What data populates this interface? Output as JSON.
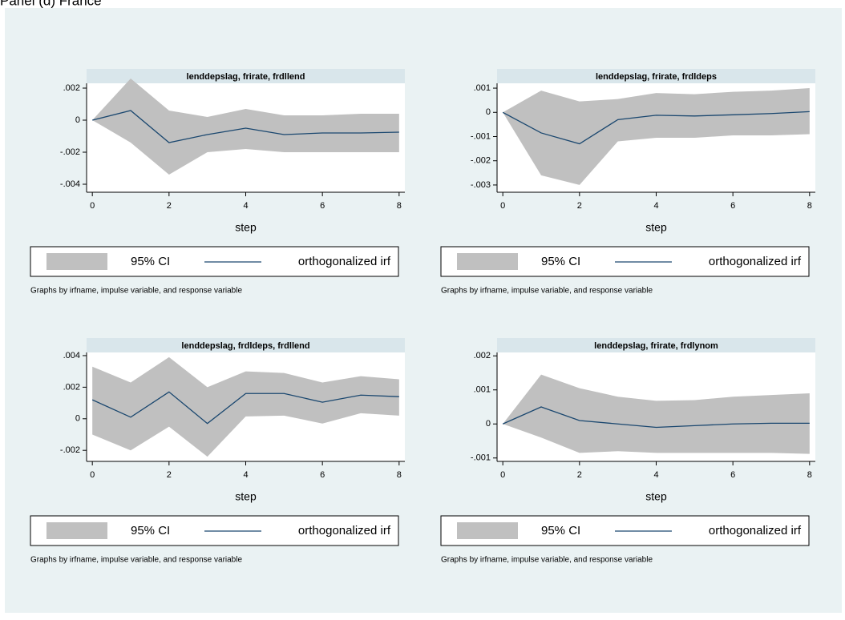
{
  "heading": "Panel (d) France",
  "chart_data": [
    {
      "type": "line",
      "title": "lenddepslag, frirate, frdllend",
      "xlabel": "step",
      "note": "Graphs by irfname, impulse variable, and response variable",
      "x": [
        0,
        1,
        2,
        3,
        4,
        5,
        6,
        7,
        8
      ],
      "xlim": [
        -0.15,
        8.15
      ],
      "xticks": [
        0,
        2,
        4,
        6,
        8
      ],
      "ylim": [
        -0.0045,
        0.0023
      ],
      "yticks": [
        {
          "value": -0.004,
          "label": "-.004"
        },
        {
          "value": -0.002,
          "label": "-.002"
        },
        0,
        {
          "value": 0.002,
          "label": ".002"
        }
      ],
      "series": [
        {
          "name": "95% CI",
          "color": "#c0c0c0",
          "lower": [
            0,
            -0.0014,
            -0.0034,
            -0.002,
            -0.0018,
            -0.002,
            -0.002,
            -0.002,
            -0.002
          ],
          "upper": [
            0,
            0.0026,
            0.0006,
            0.0002,
            0.0007,
            0.0003,
            0.0003,
            0.0004,
            0.0004
          ]
        },
        {
          "name": "orthogonalized irf",
          "color": "#1a476f",
          "values": [
            0,
            0.0006,
            -0.0014,
            -0.0009,
            -0.0005,
            -0.0009,
            -0.0008,
            -0.0008,
            -0.00075
          ]
        }
      ]
    },
    {
      "type": "line",
      "title": "lenddepslag, frirate, frdldeps",
      "xlabel": "step",
      "note": "Graphs by irfname, impulse variable, and response variable",
      "x": [
        0,
        1,
        2,
        3,
        4,
        5,
        6,
        7,
        8
      ],
      "xlim": [
        -0.15,
        8.15
      ],
      "xticks": [
        0,
        2,
        4,
        6,
        8
      ],
      "ylim": [
        -0.0033,
        0.0012
      ],
      "yticks": [
        {
          "value": -0.003,
          "label": "-.003"
        },
        {
          "value": -0.002,
          "label": "-.002"
        },
        {
          "value": -0.001,
          "label": "-.001"
        },
        0,
        {
          "value": 0.001,
          "label": ".001"
        }
      ],
      "series": [
        {
          "name": "95% CI",
          "color": "#c0c0c0",
          "lower": [
            0,
            -0.0026,
            -0.003,
            -0.0012,
            -0.00105,
            -0.00105,
            -0.00095,
            -0.00095,
            -0.0009
          ],
          "upper": [
            0,
            0.0009,
            0.00045,
            0.00055,
            0.0008,
            0.00075,
            0.00085,
            0.0009,
            0.001
          ]
        },
        {
          "name": "orthogonalized irf",
          "color": "#1a476f",
          "values": [
            0,
            -0.00085,
            -0.0013,
            -0.0003,
            -0.00012,
            -0.00015,
            -0.0001,
            -5e-05,
            3e-05
          ]
        }
      ]
    },
    {
      "type": "line",
      "title": "lenddepslag, frdldeps, frdllend",
      "xlabel": "step",
      "note": "Graphs by irfname, impulse variable, and response variable",
      "x": [
        0,
        1,
        2,
        3,
        4,
        5,
        6,
        7,
        8
      ],
      "xlim": [
        -0.15,
        8.15
      ],
      "xticks": [
        0,
        2,
        4,
        6,
        8
      ],
      "ylim": [
        -0.0027,
        0.0042
      ],
      "yticks": [
        {
          "value": -0.002,
          "label": "-.002"
        },
        0,
        {
          "value": 0.002,
          "label": ".002"
        },
        {
          "value": 0.004,
          "label": ".004"
        }
      ],
      "series": [
        {
          "name": "95% CI",
          "color": "#c0c0c0",
          "lower": [
            -0.001,
            -0.002,
            -0.0005,
            -0.0024,
            0.00015,
            0.0002,
            -0.0003,
            0.00035,
            0.0002
          ],
          "upper": [
            0.0033,
            0.0023,
            0.0039,
            0.002,
            0.003,
            0.0029,
            0.0023,
            0.0027,
            0.0025
          ]
        },
        {
          "name": "orthogonalized irf",
          "color": "#1a476f",
          "values": [
            0.0012,
            0.0001,
            0.0017,
            -0.0003,
            0.0016,
            0.0016,
            0.00105,
            0.0015,
            0.0014
          ]
        }
      ]
    },
    {
      "type": "line",
      "title": "lenddepslag, frirate, frdlynom",
      "xlabel": "step",
      "note": "Graphs by irfname, impulse variable, and response variable",
      "x": [
        0,
        1,
        2,
        3,
        4,
        5,
        6,
        7,
        8
      ],
      "xlim": [
        -0.15,
        8.15
      ],
      "xticks": [
        0,
        2,
        4,
        6,
        8
      ],
      "ylim": [
        -0.0011,
        0.0021
      ],
      "yticks": [
        {
          "value": -0.001,
          "label": "-.001"
        },
        0,
        {
          "value": 0.001,
          "label": ".001"
        },
        {
          "value": 0.002,
          "label": ".002"
        }
      ],
      "series": [
        {
          "name": "95% CI",
          "color": "#c0c0c0",
          "lower": [
            0,
            -0.0004,
            -0.00085,
            -0.0008,
            -0.00085,
            -0.00085,
            -0.00085,
            -0.00085,
            -0.00088
          ],
          "upper": [
            0,
            0.00145,
            0.00105,
            0.0008,
            0.00068,
            0.0007,
            0.0008,
            0.00085,
            0.0009
          ]
        },
        {
          "name": "orthogonalized irf",
          "color": "#1a476f",
          "values": [
            0,
            0.0005,
            0.0001,
            0,
            -0.0001,
            -5e-05,
            0,
            2e-05,
            2e-05
          ]
        }
      ]
    }
  ]
}
